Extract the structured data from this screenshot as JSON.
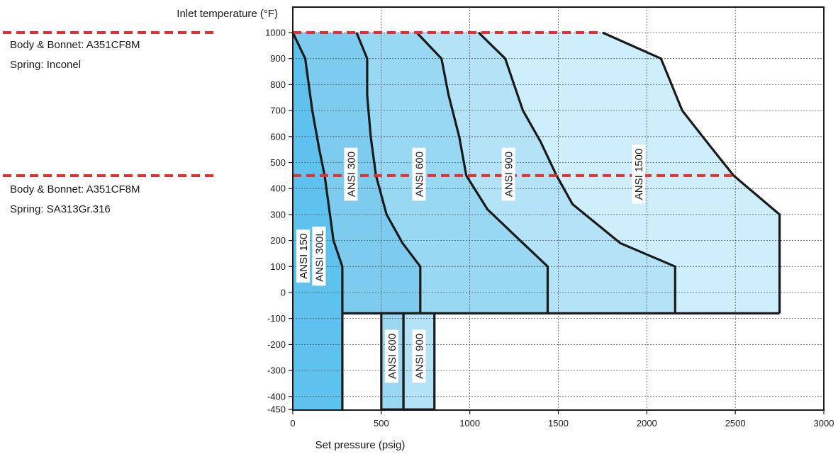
{
  "chart_data": {
    "type": "area",
    "ylabel": "Inlet temperature (°F)",
    "xlabel": "Set pressure (psig)",
    "xlim": [
      0,
      3000
    ],
    "ylim": [
      -450,
      1000
    ],
    "xticks": [
      0,
      500,
      1000,
      1500,
      2000,
      2500,
      3000
    ],
    "yticks": [
      1000,
      900,
      800,
      700,
      600,
      500,
      400,
      300,
      200,
      100,
      0,
      -100,
      -200,
      -300,
      -400,
      -450
    ],
    "grid": true,
    "regions": [
      {
        "name": "ANSI 1500",
        "color": "#cdeefa",
        "boundary": [
          [
            1750,
            1000
          ],
          [
            2080,
            900
          ],
          [
            2200,
            700
          ],
          [
            2350,
            570
          ],
          [
            2490,
            450
          ],
          [
            2750,
            300
          ],
          [
            2750,
            -80
          ]
        ]
      },
      {
        "name": "ANSI 900",
        "color": "#b4e3f7",
        "boundary": [
          [
            1050,
            1000
          ],
          [
            1200,
            900
          ],
          [
            1300,
            700
          ],
          [
            1400,
            580
          ],
          [
            1490,
            450
          ],
          [
            1580,
            340
          ],
          [
            1850,
            190
          ],
          [
            2160,
            100
          ],
          [
            2160,
            -80
          ]
        ]
      },
      {
        "name": "ANSI 600",
        "color": "#99d8f2",
        "boundary": [
          [
            700,
            1000
          ],
          [
            840,
            900
          ],
          [
            880,
            760
          ],
          [
            940,
            600
          ],
          [
            980,
            450
          ],
          [
            1100,
            320
          ],
          [
            1300,
            190
          ],
          [
            1440,
            100
          ],
          [
            1440,
            -80
          ]
        ]
      },
      {
        "name": "ANSI 300",
        "color": "#7dccef",
        "boundary": [
          [
            360,
            1000
          ],
          [
            420,
            900
          ],
          [
            420,
            760
          ],
          [
            440,
            600
          ],
          [
            470,
            450
          ],
          [
            530,
            300
          ],
          [
            620,
            190
          ],
          [
            720,
            100
          ],
          [
            720,
            -80
          ]
        ]
      },
      {
        "name": "ANSI 300L",
        "color": "#5fc2ee",
        "boundary": [
          [
            0,
            1000
          ],
          [
            70,
            900
          ],
          [
            110,
            700
          ],
          [
            150,
            550
          ],
          [
            180,
            450
          ],
          [
            230,
            200
          ],
          [
            280,
            100
          ],
          [
            280,
            -450
          ]
        ]
      },
      {
        "name": "ANSI 150",
        "color": "#47bdee",
        "boundary": [
          [
            0,
            1000
          ],
          [
            0,
            -450
          ]
        ]
      }
    ],
    "low_temp_regions": [
      {
        "name": "ANSI 600",
        "color": "#99d8f2",
        "x_range": [
          500,
          625
        ],
        "y_range": [
          -450,
          -80
        ]
      },
      {
        "name": "ANSI 900",
        "color": "#b4e3f7",
        "x_range": [
          625,
          800
        ],
        "y_range": [
          -450,
          -80
        ]
      }
    ],
    "reference_lines": [
      {
        "y": 1000,
        "x_range": [
          0,
          1750
        ],
        "color": "#e03030",
        "style": "dashed"
      },
      {
        "y": 450,
        "x_range": [
          0,
          2490
        ],
        "color": "#e03030",
        "style": "dashed"
      }
    ],
    "annotations": {
      "upper": [
        "Body & Bonnet: A351CF8M",
        "Spring: Inconel"
      ],
      "lower": [
        "Body & Bonnet: A351CF8M",
        "Spring: SA313Gr.316"
      ]
    },
    "region_labels": [
      {
        "text": "ANSI 150",
        "x": 60,
        "y": 140
      },
      {
        "text": "ANSI 300L",
        "x": 150,
        "y": 140
      },
      {
        "text": "ANSI 300",
        "x": 330,
        "y": 455
      },
      {
        "text": "ANSI 600",
        "x": 715,
        "y": 455
      },
      {
        "text": "ANSI 900",
        "x": 1220,
        "y": 455
      },
      {
        "text": "ANSI 1500",
        "x": 1955,
        "y": 455
      },
      {
        "text": "ANSI 600",
        "x": 560,
        "y": -245
      },
      {
        "text": "ANSI 900",
        "x": 715,
        "y": -245
      }
    ]
  }
}
